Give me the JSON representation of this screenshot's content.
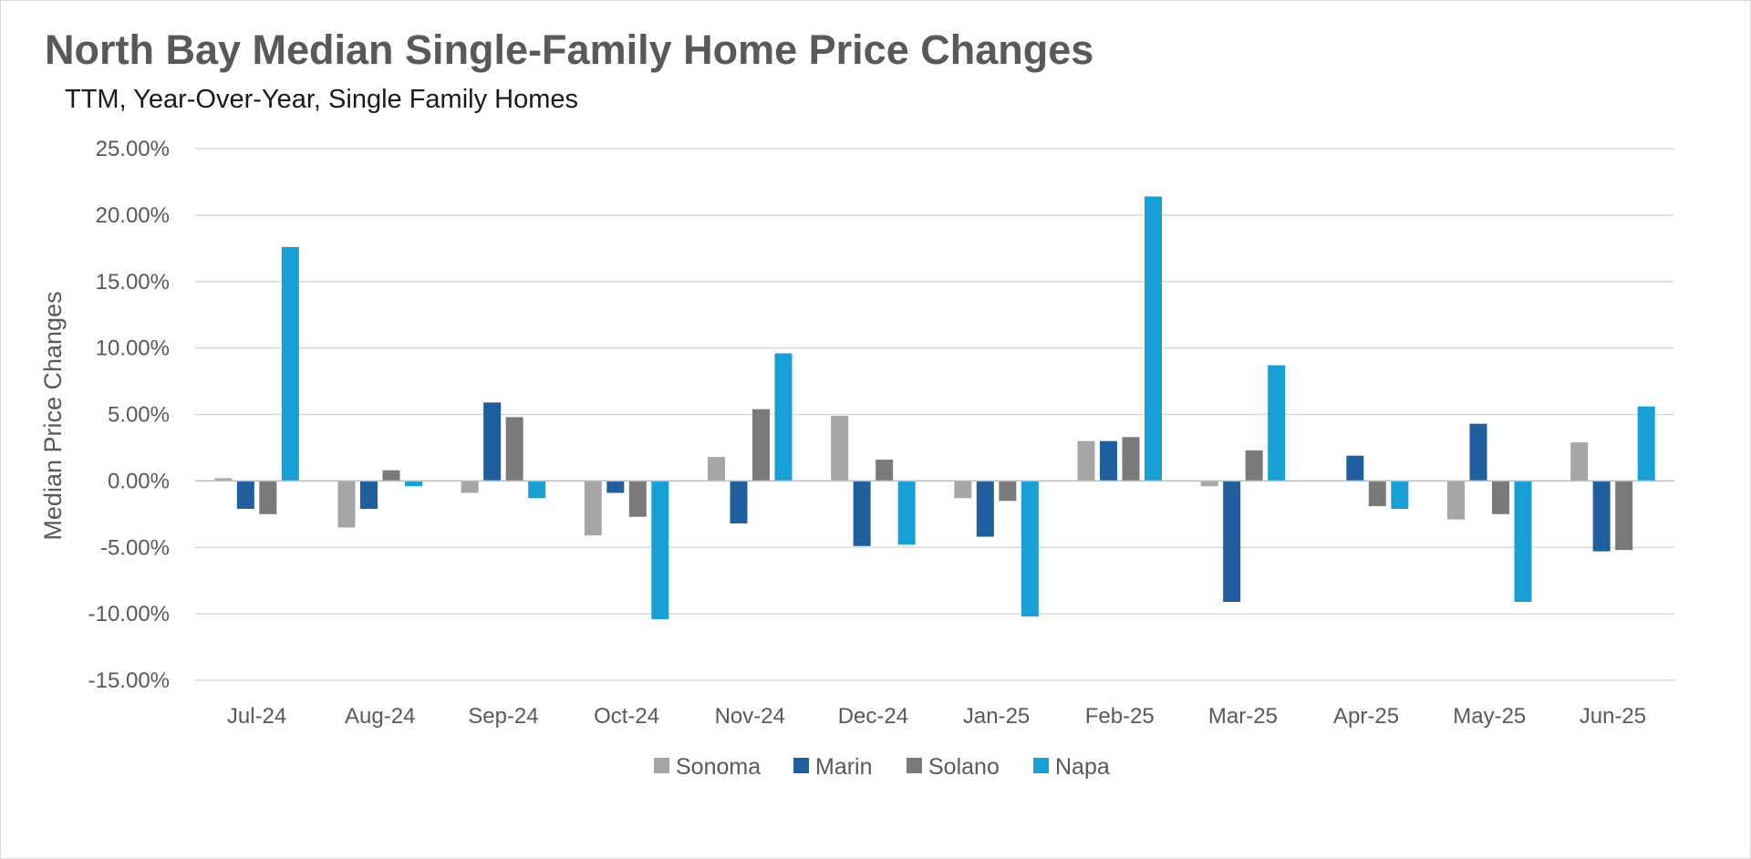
{
  "chart_data": {
    "type": "bar",
    "title": "North Bay Median Single-Family Home Price Changes",
    "subtitle": "TTM, Year-Over-Year, Single Family Homes",
    "xlabel": "",
    "ylabel": "Median Price Changes",
    "ylim": [
      -15,
      25
    ],
    "yticks": [
      25,
      20,
      15,
      10,
      5,
      0,
      -5,
      -10,
      -15
    ],
    "ytick_labels": [
      "25.00%",
      "20.00%",
      "15.00%",
      "10.00%",
      "5.00%",
      "0.00%",
      "-5.00%",
      "-10.00%",
      "-15.00%"
    ],
    "grid": true,
    "legend_position": "bottom",
    "categories": [
      "Jul-24",
      "Aug-24",
      "Sep-24",
      "Oct-24",
      "Nov-24",
      "Dec-24",
      "Jan-25",
      "Feb-25",
      "Mar-25",
      "Apr-25",
      "May-25",
      "Jun-25"
    ],
    "series": [
      {
        "name": "Sonoma",
        "color": "#a6a6a6",
        "values": [
          0.2,
          -3.5,
          -0.9,
          -4.1,
          1.8,
          4.9,
          -1.3,
          3.0,
          -0.4,
          0.0,
          -2.9,
          2.9
        ]
      },
      {
        "name": "Marin",
        "color": "#1f5f9d",
        "values": [
          -2.1,
          -2.1,
          5.9,
          -0.9,
          -3.2,
          -4.9,
          -4.2,
          3.0,
          -9.1,
          1.9,
          4.3,
          -5.3
        ]
      },
      {
        "name": "Solano",
        "color": "#7a7a7a",
        "values": [
          -2.5,
          0.8,
          4.8,
          -2.7,
          5.4,
          1.6,
          -1.5,
          3.3,
          2.3,
          -1.9,
          -2.5,
          -5.2
        ]
      },
      {
        "name": "Napa",
        "color": "#18a0d6",
        "values": [
          17.6,
          -0.4,
          -1.3,
          -10.4,
          9.6,
          -4.8,
          -10.2,
          21.4,
          8.7,
          -2.1,
          -9.1,
          5.6
        ]
      }
    ]
  }
}
